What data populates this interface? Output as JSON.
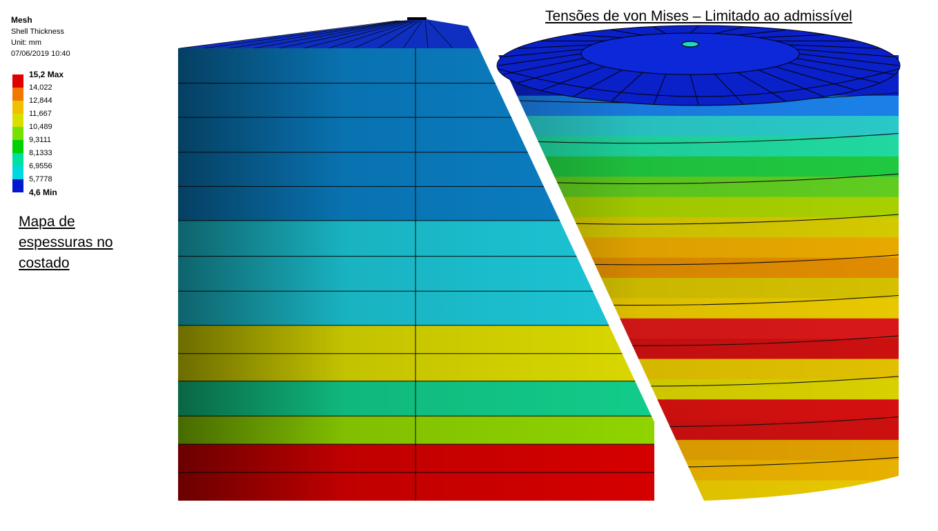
{
  "legend": {
    "title": "Mesh",
    "subtitle": "Shell Thickness",
    "unit": "Unit: mm",
    "timestamp": "07/06/2019 10:40",
    "entries": [
      {
        "label": "15,2 Max",
        "color": "#e00000",
        "bold": true
      },
      {
        "label": "14,022",
        "color": "#f07800",
        "bold": false
      },
      {
        "label": "12,844",
        "color": "#f0c000",
        "bold": false
      },
      {
        "label": "11,667",
        "color": "#d8e000",
        "bold": false
      },
      {
        "label": "10,489",
        "color": "#78e000",
        "bold": false
      },
      {
        "label": "9,3111",
        "color": "#00d000",
        "bold": false
      },
      {
        "label": "8,1333",
        "color": "#00e0a0",
        "bold": false
      },
      {
        "label": "6,9556",
        "color": "#00d8e0",
        "bold": false
      },
      {
        "label": "5,7778",
        "color": "#0090f0",
        "bold": false
      },
      {
        "label": "4,6 Min",
        "color": "#0018d0",
        "bold": true
      }
    ]
  },
  "left_caption": "Mapa de espessuras no costado",
  "right_caption": "Tensões de von Mises – Limitado ao admissível",
  "thickness_model": {
    "roof_color": "#0f2fc0",
    "courses": [
      {
        "color": "#0a7fc4"
      },
      {
        "color": "#0a7fc4"
      },
      {
        "color": "#0a7fc4"
      },
      {
        "color": "#0a7fc4"
      },
      {
        "color": "#0a7fc4"
      },
      {
        "color": "#1cc6d6"
      },
      {
        "color": "#1cc6d6"
      },
      {
        "color": "#1cc6d6"
      },
      {
        "color": "#d9d800"
      },
      {
        "color": "#d9d800"
      },
      {
        "color": "#12cc8a"
      },
      {
        "color": "#8fd400"
      },
      {
        "color": "#d50000"
      },
      {
        "color": "#d50000"
      }
    ]
  },
  "stress_model": {
    "roof_color": "#0a20c8",
    "bands": [
      {
        "color": "#0a20c8"
      },
      {
        "color": "#0a20c8"
      },
      {
        "color": "#1a80e8"
      },
      {
        "color": "#2ac8c8"
      },
      {
        "color": "#20d8a0"
      },
      {
        "color": "#20c840"
      },
      {
        "color": "#60cc20"
      },
      {
        "color": "#a8d000"
      },
      {
        "color": "#d4c800"
      },
      {
        "color": "#e8a800"
      },
      {
        "color": "#e08c00"
      },
      {
        "color": "#d4c000"
      },
      {
        "color": "#e8c800"
      },
      {
        "color": "#d81818"
      },
      {
        "color": "#cc1010"
      },
      {
        "color": "#e0c000"
      },
      {
        "color": "#d8d000"
      },
      {
        "color": "#d41010"
      },
      {
        "color": "#cc1010"
      },
      {
        "color": "#e0a000"
      },
      {
        "color": "#e8b000"
      },
      {
        "color": "#e8c800"
      }
    ]
  }
}
